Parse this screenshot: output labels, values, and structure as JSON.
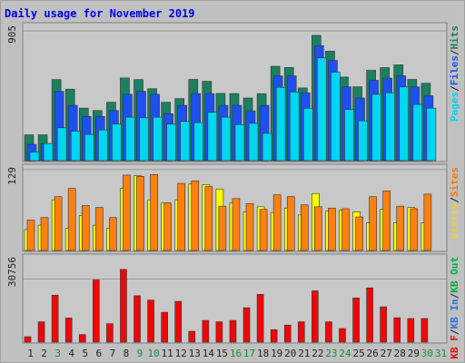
{
  "chart_data": {
    "type": "bar",
    "title": "Daily usage for November 2019",
    "categories": [
      "1",
      "2",
      "3",
      "4",
      "5",
      "6",
      "7",
      "8",
      "9",
      "10",
      "11",
      "12",
      "13",
      "14",
      "15",
      "16",
      "17",
      "18",
      "19",
      "20",
      "21",
      "22",
      "23",
      "24",
      "25",
      "26",
      "27",
      "28",
      "29",
      "30",
      "31"
    ],
    "weekend_days": [
      "3",
      "9",
      "10",
      "16",
      "17",
      "23",
      "24",
      "30",
      "31"
    ],
    "panels": [
      {
        "id": "top",
        "ymax_label": "905",
        "ymax": 905,
        "right_labels": [
          {
            "text": "Pages",
            "color": "#00d5f2"
          },
          {
            "text": "/",
            "color": "#222222"
          },
          {
            "text": "Files",
            "color": "#1e50f0"
          },
          {
            "text": "/",
            "color": "#222222"
          },
          {
            "text": "Hits",
            "color": "#1a8060"
          }
        ],
        "series": [
          {
            "name": "Hits",
            "color": "#1a8060",
            "values": [
              175,
              175,
              550,
              485,
              356,
              340,
              396,
              561,
              550,
              488,
              396,
              421,
              551,
              538,
              456,
              455,
              425,
              454,
              640,
              632,
              493,
              850,
              743,
              567,
              501,
              613,
              631,
              650,
              551,
              525,
              0
            ]
          },
          {
            "name": "Files",
            "color": "#1e50f0",
            "values": [
              110,
              116,
              470,
              375,
              300,
              300,
              340,
              450,
              470,
              450,
              318,
              375,
              455,
              455,
              375,
              375,
              338,
              375,
              575,
              575,
              460,
              780,
              680,
              500,
              425,
              545,
              560,
              575,
              500,
              440,
              0
            ]
          },
          {
            "name": "Pages",
            "color": "#00d5f2",
            "values": [
              58,
              116,
              223,
              200,
              178,
              208,
              248,
              295,
              290,
              295,
              248,
              266,
              258,
              328,
              295,
              244,
              253,
              185,
              497,
              466,
              355,
              697,
              600,
              347,
              270,
              450,
              460,
              500,
              381,
              356,
              0
            ]
          }
        ]
      },
      {
        "id": "middle",
        "ymax_label": "129",
        "ymax": 129,
        "right_labels": [
          {
            "text": "Visits",
            "color": "#e6d040"
          },
          {
            "text": "/",
            "color": "#222222"
          },
          {
            "text": "Sites",
            "color": "#f07a10"
          }
        ],
        "series": [
          {
            "name": "Visits",
            "color": "#ffff00",
            "values": [
              33,
              40,
              80,
              35,
              55,
              40,
              35,
              98,
              118,
              80,
              75,
              80,
              105,
              104,
              97,
              75,
              61,
              69,
              60,
              67,
              56,
              90,
              62,
              64,
              61,
              44,
              65,
              44,
              68,
              44,
              0
            ]
          },
          {
            "name": "Sites",
            "color": "#ff8010",
            "values": [
              48,
              52,
              85,
              98,
              71,
              68,
              52,
              119,
              117,
              120,
              75,
              106,
              110,
              101,
              70,
              82,
              74,
              65,
              88,
              85,
              72,
              69,
              67,
              66,
              53,
              85,
              94,
              70,
              66,
              89,
              0
            ]
          }
        ]
      },
      {
        "id": "bottom",
        "ymax_label": "30756",
        "ymax": 30756,
        "right_labels": [
          {
            "text": "KB F",
            "color": "#e01010"
          },
          {
            "text": "/",
            "color": "#222222"
          },
          {
            "text": "KB In",
            "color": "#3070e0"
          },
          {
            "text": "/",
            "color": "#222222"
          },
          {
            "text": "KB Out",
            "color": "#00b040"
          }
        ],
        "series": [
          {
            "name": "KB F",
            "color": "#ee0808",
            "values": [
              2000,
              7500,
              17300,
              8900,
              2800,
              22900,
              6800,
              26800,
              17100,
              15500,
              11000,
              15000,
              4000,
              8000,
              7500,
              8000,
              12700,
              17600,
              4600,
              6300,
              7500,
              18900,
              7500,
              5000,
              16300,
              20000,
              13000,
              9000,
              8700,
              8700,
              0
            ]
          }
        ]
      }
    ]
  }
}
